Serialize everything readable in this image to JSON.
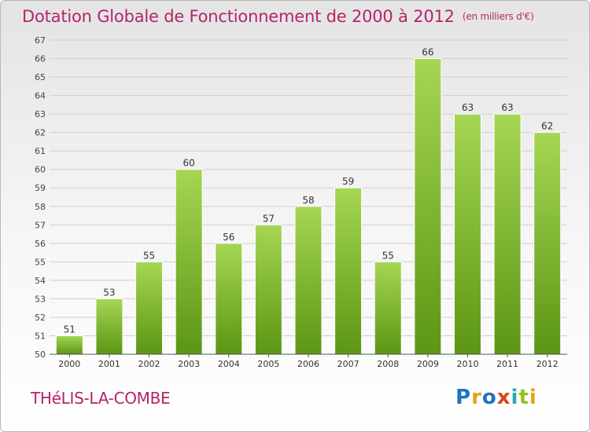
{
  "header": {
    "title": "Dotation Globale de Fonctionnement de 2000 à 2012",
    "unit": "(en milliers d'€)"
  },
  "footer": {
    "commune": "THéLIS-LA-COMBE",
    "logo": "Proxiti"
  },
  "colors": {
    "title": "#b5246a",
    "bar_top": "#a5d654",
    "bar_bottom": "#5c9614",
    "logo": [
      "#1f73c2",
      "#e5a11a",
      "#1f73c2",
      "#d9441c",
      "#2ea6b9",
      "#8fc31f",
      "#e5a11a"
    ]
  },
  "chart_data": {
    "type": "bar",
    "title": "Dotation Globale de Fonctionnement de 2000 à 2012",
    "subtitle": "(en milliers d'€)",
    "xlabel": "",
    "ylabel": "",
    "categories": [
      "2000",
      "2001",
      "2002",
      "2003",
      "2004",
      "2005",
      "2006",
      "2007",
      "2008",
      "2009",
      "2010",
      "2011",
      "2012"
    ],
    "values": [
      51,
      53,
      55,
      60,
      56,
      57,
      58,
      59,
      55,
      66,
      63,
      63,
      62
    ],
    "ylim": [
      50,
      67
    ],
    "yticks": [
      50,
      51,
      52,
      53,
      54,
      55,
      56,
      57,
      58,
      59,
      60,
      61,
      62,
      63,
      64,
      65,
      66,
      67
    ],
    "grid": true
  }
}
